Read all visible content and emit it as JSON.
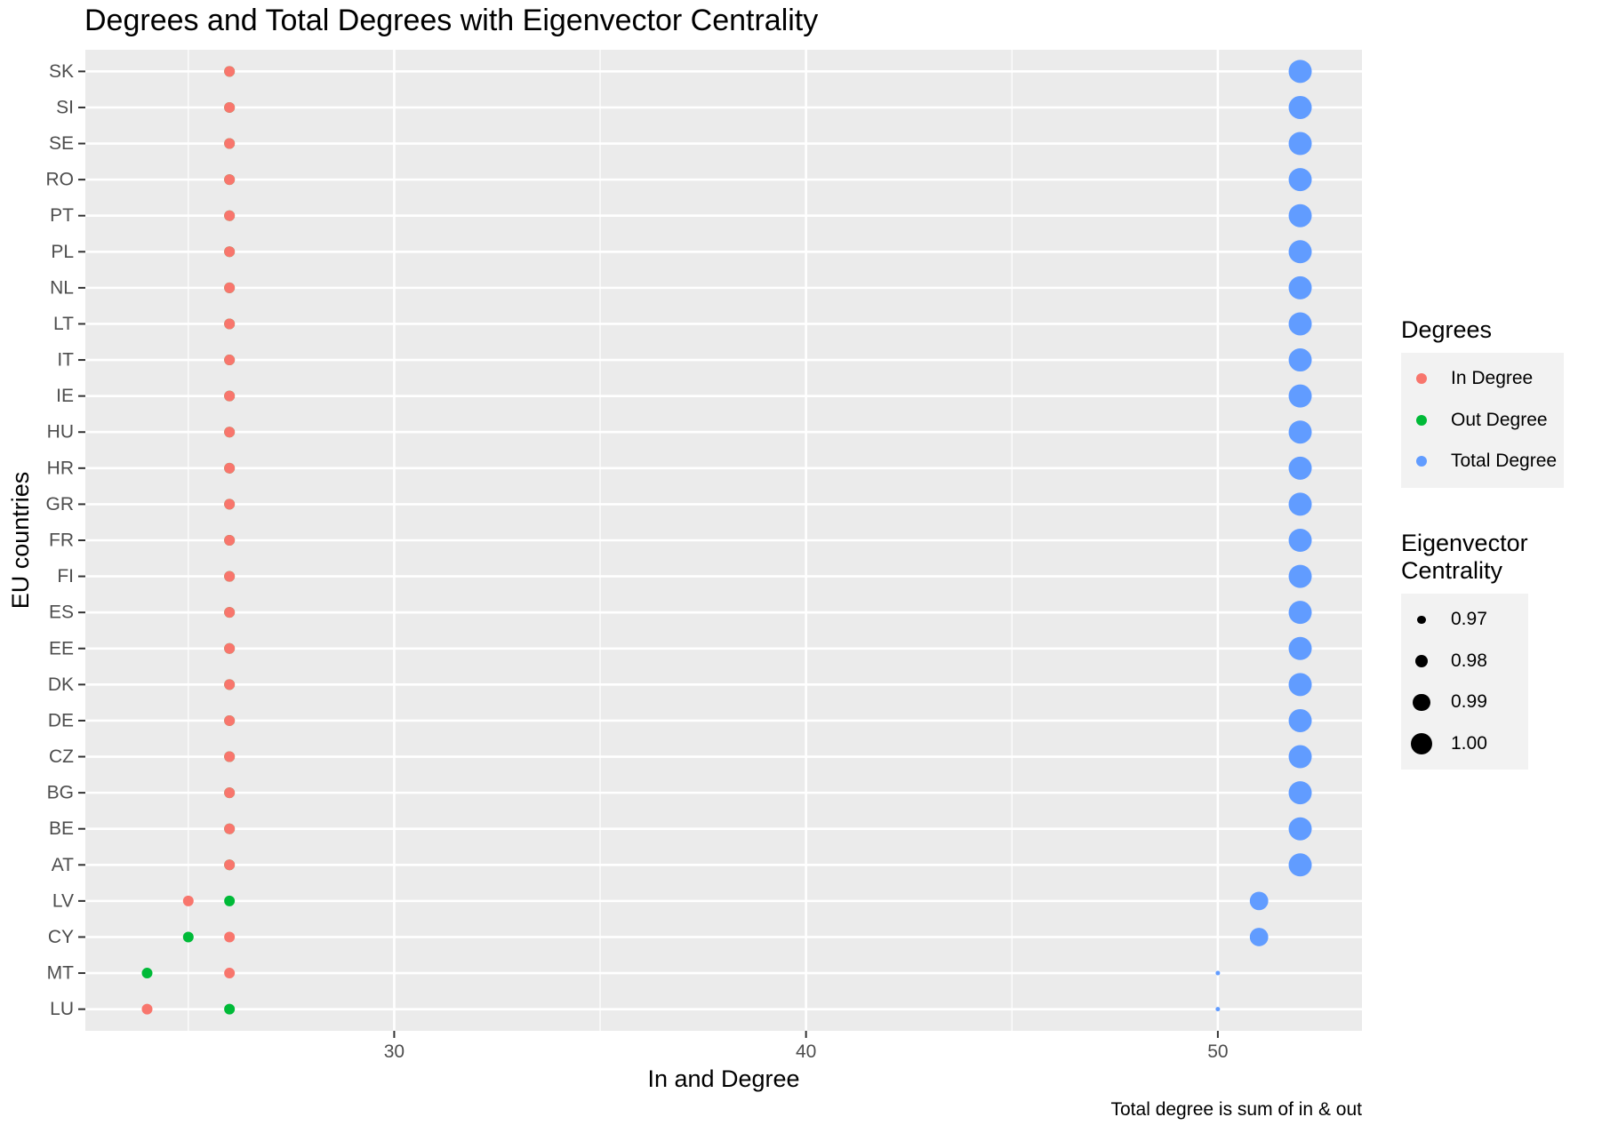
{
  "chart_data": {
    "type": "scatter",
    "title": "Degrees and Total Degrees with Eigenvector Centrality",
    "xlabel": "In and Degree",
    "ylabel": "EU countries",
    "caption": "Total degree is sum of in & out",
    "xlim": [
      22.5,
      53.5
    ],
    "x_ticks": [
      30,
      40,
      50
    ],
    "x_tick_labels": [
      "30",
      "40",
      "50"
    ],
    "grid": true,
    "legend_placement": "right",
    "categories": [
      "LU",
      "MT",
      "CY",
      "LV",
      "AT",
      "BE",
      "BG",
      "CZ",
      "DE",
      "DK",
      "EE",
      "ES",
      "FI",
      "FR",
      "GR",
      "HR",
      "HU",
      "IE",
      "IT",
      "LT",
      "NL",
      "PL",
      "PT",
      "RO",
      "SE",
      "SI",
      "SK"
    ],
    "series": [
      {
        "name": "In Degree",
        "color": "#F8766D",
        "values": [
          24,
          26,
          26,
          25,
          26,
          26,
          26,
          26,
          26,
          26,
          26,
          26,
          26,
          26,
          26,
          26,
          26,
          26,
          26,
          26,
          26,
          26,
          26,
          26,
          26,
          26,
          26
        ]
      },
      {
        "name": "Out Degree",
        "color": "#00BA38",
        "values": [
          26,
          24,
          25,
          26,
          26,
          26,
          26,
          26,
          26,
          26,
          26,
          26,
          26,
          26,
          26,
          26,
          26,
          26,
          26,
          26,
          26,
          26,
          26,
          26,
          26,
          26,
          26
        ]
      },
      {
        "name": "Total Degree",
        "color": "#619CFF",
        "values": [
          50,
          50,
          51,
          51,
          52,
          52,
          52,
          52,
          52,
          52,
          52,
          52,
          52,
          52,
          52,
          52,
          52,
          52,
          52,
          52,
          52,
          52,
          52,
          52,
          52,
          52,
          52
        ]
      }
    ],
    "eigenvector_centrality": [
      0.96,
      0.96,
      0.99,
      0.99,
      1.0,
      1.0,
      1.0,
      1.0,
      1.0,
      1.0,
      1.0,
      1.0,
      1.0,
      1.0,
      1.0,
      1.0,
      1.0,
      1.0,
      1.0,
      1.0,
      1.0,
      1.0,
      1.0,
      1.0,
      1.0,
      1.0,
      1.0
    ],
    "legend_colour": {
      "title": "Degrees",
      "items": [
        {
          "label": "In Degree",
          "color": "#F8766D"
        },
        {
          "label": "Out Degree",
          "color": "#00BA38"
        },
        {
          "label": "Total Degree",
          "color": "#619CFF"
        }
      ]
    },
    "legend_size": {
      "title_line1": "Eigenvector",
      "title_line2": "Centrality",
      "items": [
        {
          "label": "0.97",
          "value": 0.97
        },
        {
          "label": "0.98",
          "value": 0.98
        },
        {
          "label": "0.99",
          "value": 0.99
        },
        {
          "label": "1.00",
          "value": 1.0
        }
      ]
    }
  }
}
